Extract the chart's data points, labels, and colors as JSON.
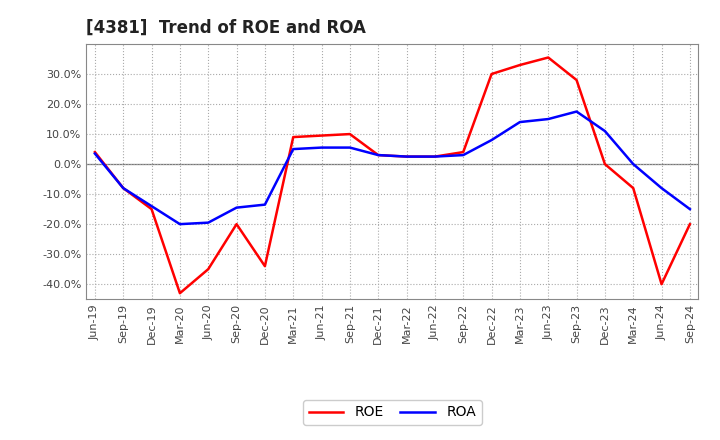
{
  "title": "[4381]  Trend of ROE and ROA",
  "x_labels": [
    "Jun-19",
    "Sep-19",
    "Dec-19",
    "Mar-20",
    "Jun-20",
    "Sep-20",
    "Dec-20",
    "Mar-21",
    "Jun-21",
    "Sep-21",
    "Dec-21",
    "Mar-22",
    "Jun-22",
    "Sep-22",
    "Dec-22",
    "Mar-23",
    "Jun-23",
    "Sep-23",
    "Dec-23",
    "Mar-24",
    "Jun-24",
    "Sep-24"
  ],
  "roe": [
    4.0,
    -8.0,
    -15.0,
    -43.0,
    -35.0,
    -20.0,
    -34.0,
    9.0,
    9.5,
    10.0,
    3.0,
    2.5,
    2.5,
    4.0,
    30.0,
    33.0,
    35.5,
    28.0,
    0.0,
    -8.0,
    -40.0,
    -20.0
  ],
  "roa": [
    3.5,
    -8.0,
    -14.0,
    -20.0,
    -19.5,
    -14.5,
    -13.5,
    5.0,
    5.5,
    5.5,
    3.0,
    2.5,
    2.5,
    3.0,
    8.0,
    14.0,
    15.0,
    17.5,
    11.0,
    0.0,
    -8.0,
    -15.0
  ],
  "roe_color": "#ff0000",
  "roa_color": "#0000ff",
  "bg_color": "#ffffff",
  "plot_bg_color": "#ffffff",
  "grid_color": "#aaaaaa",
  "ylim": [
    -45,
    40
  ],
  "yticks": [
    -40,
    -30,
    -20,
    -10,
    0,
    10,
    20,
    30
  ],
  "legend_labels": [
    "ROE",
    "ROA"
  ],
  "title_fontsize": 12,
  "axis_fontsize": 8,
  "legend_fontsize": 10
}
